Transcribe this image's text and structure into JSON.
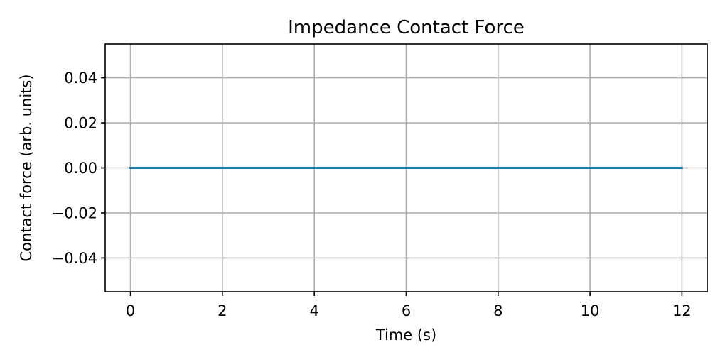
{
  "chart_data": {
    "type": "line",
    "title": "Impedance Contact Force",
    "xlabel": "Time (s)",
    "ylabel": "Contact force (arb. units)",
    "xlim": [
      -0.55,
      12.55
    ],
    "ylim": [
      -0.055,
      0.055
    ],
    "xticks": [
      0,
      2,
      4,
      6,
      8,
      10,
      12
    ],
    "xtick_labels": [
      "0",
      "2",
      "4",
      "6",
      "8",
      "10",
      "12"
    ],
    "yticks": [
      -0.04,
      -0.02,
      0.0,
      0.02,
      0.04
    ],
    "ytick_labels": [
      "−0.04",
      "−0.02",
      "0.00",
      "0.02",
      "0.04"
    ],
    "grid": true,
    "legend": "none",
    "series": [
      {
        "color": "#1f77b4",
        "x": [
          0,
          12
        ],
        "y": [
          0.0,
          0.0
        ]
      }
    ]
  }
}
